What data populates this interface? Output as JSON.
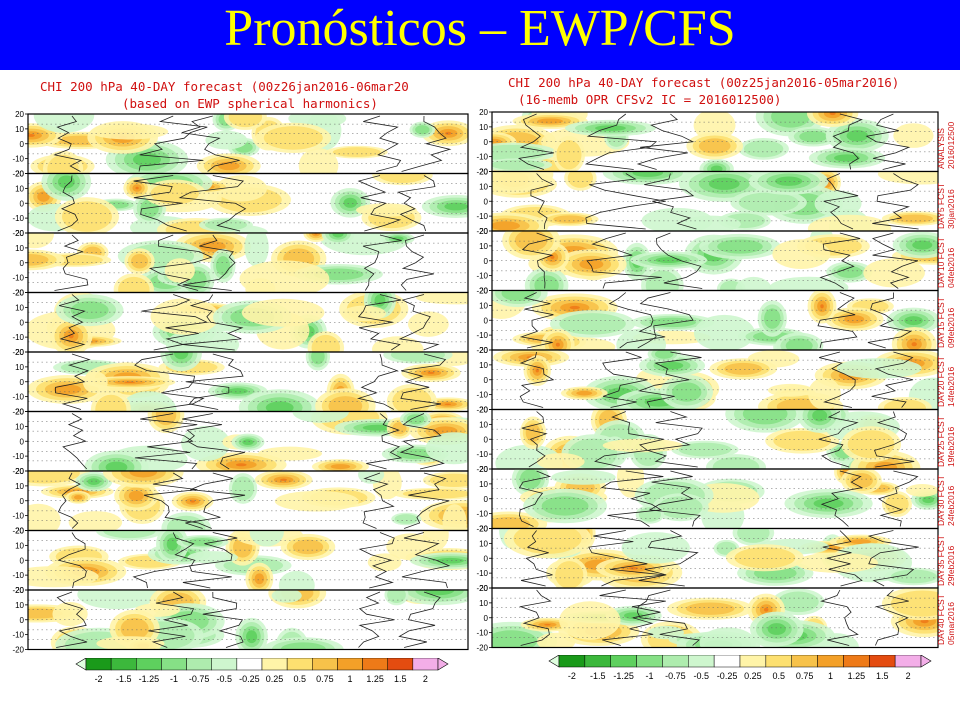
{
  "slide": {
    "title": "Pronósticos – EWP/CFS",
    "colors": {
      "header_bg": "#0000ff",
      "title": "#ffff00",
      "panel_title": "#d01010"
    }
  },
  "left_panel": {
    "title_line1": "CHI 200 hPa 40-DAY forecast (00z26jan2016-06mar20",
    "title_line2": "(based on EWP spherical harmonics)",
    "y_ticks": [
      "20",
      "10",
      "0",
      "-10",
      "-20"
    ],
    "row_count": 9,
    "colorbar_labels": [
      "-2",
      "-1.5",
      "-1.25",
      "-1",
      "-0.75",
      "-0.5",
      "-0.25",
      "0.25",
      "0.5",
      "0.75",
      "1",
      "1.25",
      "1.5",
      "2"
    ]
  },
  "right_panel": {
    "title_line1": "CHI 200 hPa 40-DAY forecast (00z25jan2016-05mar2016)",
    "title_line2": "(16-memb OPR CFSv2 IC = 2016012500)",
    "y_ticks": [
      "20",
      "10",
      "0",
      "-10",
      "-20"
    ],
    "row_count": 9,
    "side_labels": [
      {
        "line1": "ANALYSIS",
        "line2": "2016012500"
      },
      {
        "line1": "DAY5 FCST",
        "line2": "30jan2016"
      },
      {
        "line1": "DAY10 FCST",
        "line2": "04feb2016"
      },
      {
        "line1": "DAY15 FCST",
        "line2": "09feb2016"
      },
      {
        "line1": "DAY20 FCST",
        "line2": "14feb2016"
      },
      {
        "line1": "DAY25 FCST",
        "line2": "19feb2016"
      },
      {
        "line1": "DAY30 FCST",
        "line2": "24feb2016"
      },
      {
        "line1": "DAY35 FCST",
        "line2": "29feb2016"
      },
      {
        "line1": "DAY40 FCST",
        "line2": "05mar2016"
      }
    ],
    "colorbar_labels": [
      "-2",
      "-1.5",
      "-1.25",
      "-1",
      "-0.75",
      "-0.5",
      "-0.25",
      "0.25",
      "0.5",
      "0.75",
      "1",
      "1.25",
      "1.5",
      "2"
    ]
  },
  "colorbar_colors": [
    "#1a9a1a",
    "#3cb83c",
    "#5ed05e",
    "#86e086",
    "#aeecae",
    "#cef6ce",
    "#ffffff",
    "#fff4a8",
    "#fde070",
    "#f7c24a",
    "#f3a028",
    "#ee7a18",
    "#e44c10",
    "#f3aee8"
  ]
}
